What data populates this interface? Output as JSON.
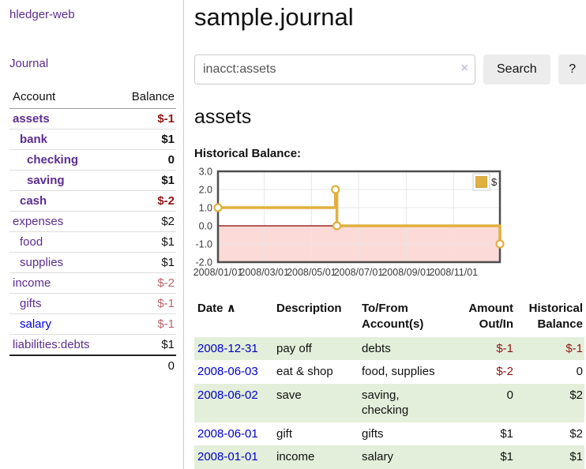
{
  "app": {
    "brand": "hledger-web",
    "nav_journal": "Journal"
  },
  "sidebar": {
    "headers": {
      "account": "Account",
      "balance": "Balance"
    },
    "accounts": [
      {
        "name": "assets",
        "balance": "$-1"
      },
      {
        "name": "bank",
        "balance": "$1"
      },
      {
        "name": "checking",
        "balance": "0"
      },
      {
        "name": "saving",
        "balance": "$1"
      },
      {
        "name": "cash",
        "balance": "$-2"
      },
      {
        "name": "expenses",
        "balance": "$2"
      },
      {
        "name": "food",
        "balance": "$1"
      },
      {
        "name": "supplies",
        "balance": "$1"
      },
      {
        "name": "income",
        "balance": "$-2"
      },
      {
        "name": "gifts",
        "balance": "$-1"
      },
      {
        "name": "salary",
        "balance": "$-1"
      },
      {
        "name": "liabilities:debts",
        "balance": "$1"
      }
    ],
    "total": "0"
  },
  "header": {
    "title": "sample.journal"
  },
  "search": {
    "value": "inacct:assets",
    "clear_icon": "×",
    "button_label": "Search",
    "help_label": "?"
  },
  "account_page": {
    "heading": "assets",
    "chart_label": "Historical Balance:"
  },
  "chart_data": {
    "type": "line",
    "step": true,
    "title": "Historical Balance:",
    "xlim": [
      "2008-01-01",
      "2008-12-31"
    ],
    "ylim": [
      -2,
      3
    ],
    "y_ticks": [
      "3.0",
      "2.0",
      "1.0",
      "0.0",
      "-1.0",
      "-2.0"
    ],
    "x_ticks": [
      {
        "date": "2008-01-01",
        "label": "2008/01/01"
      },
      {
        "date": "2008-03-01",
        "label": "2008/03/01"
      },
      {
        "date": "2008-05-01",
        "label": "2008/05/01"
      },
      {
        "date": "2008-07-01",
        "label": "2008/07/01"
      },
      {
        "date": "2008-09-01",
        "label": "2008/09/01"
      },
      {
        "date": "2008-11-01",
        "label": "2008/11/01"
      }
    ],
    "series": [
      {
        "name": "$",
        "color": "#e0b03e",
        "points": [
          [
            "2008-01-01",
            1
          ],
          [
            "2008-06-01",
            2
          ],
          [
            "2008-06-03",
            0
          ],
          [
            "2008-12-31",
            -1
          ]
        ]
      }
    ],
    "legend": [
      {
        "label": "$",
        "color": "#e0b03e"
      }
    ],
    "legend_position": "top-right",
    "grid": true,
    "grid_color": "#e7e7e7",
    "border_color": "#4d4d4d",
    "negative_region_fill": "#fbdad7",
    "zero_line_color": "#8b0000"
  },
  "register": {
    "sort_icon": "∧",
    "headers": {
      "date": "Date",
      "description": "Description",
      "accounts": "To/From Account(s)",
      "amount": "Amount Out/In",
      "balance": "Historical Balance"
    },
    "rows": [
      {
        "date": "2008-12-31",
        "description": "pay off",
        "accounts": "debts",
        "amount": "$-1",
        "balance": "$-1"
      },
      {
        "date": "2008-06-03",
        "description": "eat & shop",
        "accounts": "food, supplies",
        "amount": "$-2",
        "balance": "0"
      },
      {
        "date": "2008-06-02",
        "description": "save",
        "accounts": "saving, checking",
        "amount": "0",
        "balance": "$2"
      },
      {
        "date": "2008-06-01",
        "description": "gift",
        "accounts": "gifts",
        "amount": "$1",
        "balance": "$2"
      },
      {
        "date": "2008-01-01",
        "description": "income",
        "accounts": "salary",
        "amount": "$1",
        "balance": "$1"
      }
    ]
  }
}
